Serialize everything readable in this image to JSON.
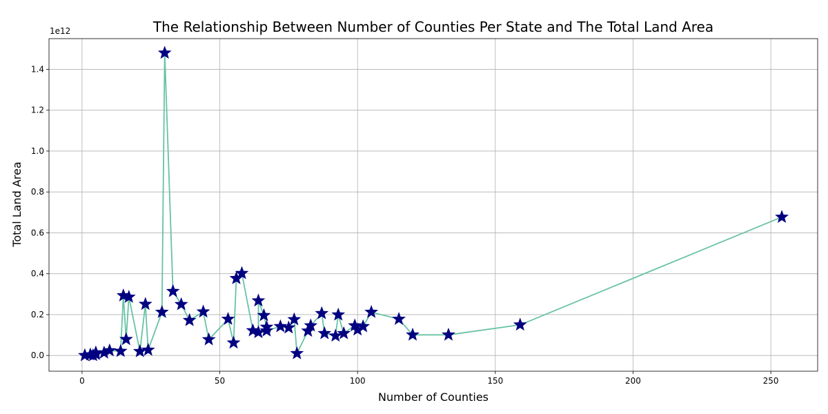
{
  "chart_data": {
    "type": "line",
    "title": "The Relationship Between Number of Counties Per State and The Total Land Area",
    "xlabel": "Number of Counties",
    "ylabel": "Total Land Area",
    "y_offset_label": "1e12",
    "xlim": [
      -12,
      267
    ],
    "ylim": [
      -0.077,
      1.55
    ],
    "y_unit_multiplier": 1000000000000.0,
    "x_ticks": [
      0,
      50,
      100,
      150,
      200,
      250
    ],
    "x_tick_labels": [
      "0",
      "50",
      "100",
      "150",
      "200",
      "250"
    ],
    "y_ticks": [
      0.0,
      0.2,
      0.4,
      0.6,
      0.8,
      1.0,
      1.2,
      1.4
    ],
    "y_tick_labels": [
      "0.0",
      "0.2",
      "0.4",
      "0.6",
      "0.8",
      "1.0",
      "1.2",
      "1.4"
    ],
    "grid": true,
    "line_color": "#66c2a5",
    "marker_color": "#000080",
    "marker": "star",
    "series": [
      {
        "x": [
          1,
          3,
          4,
          5,
          5,
          8,
          10,
          14,
          15,
          16,
          17,
          21,
          23,
          24,
          29,
          30,
          33,
          36,
          39,
          44,
          46,
          53,
          55,
          56,
          58,
          62,
          64,
          64,
          66,
          67,
          67,
          72,
          75,
          77,
          78,
          82,
          83,
          87,
          88,
          92,
          93,
          95,
          99,
          100,
          102,
          105,
          115,
          120,
          133,
          159,
          254
        ],
        "y": [
          0.0005,
          0.004,
          0.0005,
          0.006,
          0.014,
          0.013,
          0.024,
          0.021,
          0.293,
          0.079,
          0.286,
          0.02,
          0.251,
          0.027,
          0.212,
          1.48,
          0.314,
          0.25,
          0.172,
          0.214,
          0.078,
          0.178,
          0.062,
          0.377,
          0.402,
          0.122,
          0.113,
          0.268,
          0.196,
          0.139,
          0.121,
          0.142,
          0.136,
          0.176,
          0.01,
          0.12,
          0.146,
          0.206,
          0.108,
          0.096,
          0.199,
          0.108,
          0.146,
          0.126,
          0.142,
          0.212,
          0.178,
          0.101,
          0.101,
          0.15,
          0.677
        ]
      }
    ]
  }
}
